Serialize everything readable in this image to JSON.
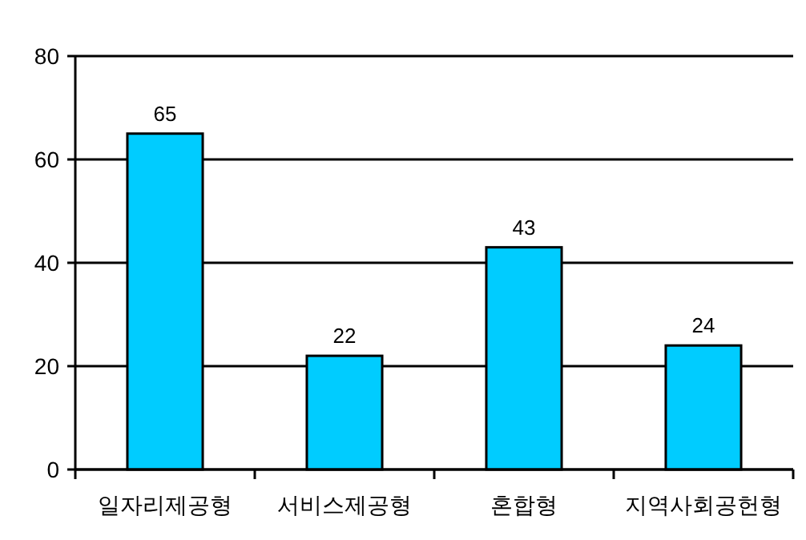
{
  "chart_data": {
    "type": "bar",
    "categories": [
      "일자리제공형",
      "서비스제공형",
      "혼합형",
      "지역사회공헌형"
    ],
    "values": [
      65,
      22,
      43,
      24
    ],
    "color": "#00ccff",
    "ylim": [
      0,
      80
    ],
    "yticks": [
      0,
      20,
      40,
      60,
      80
    ],
    "grid": "y",
    "data_labels": true
  }
}
